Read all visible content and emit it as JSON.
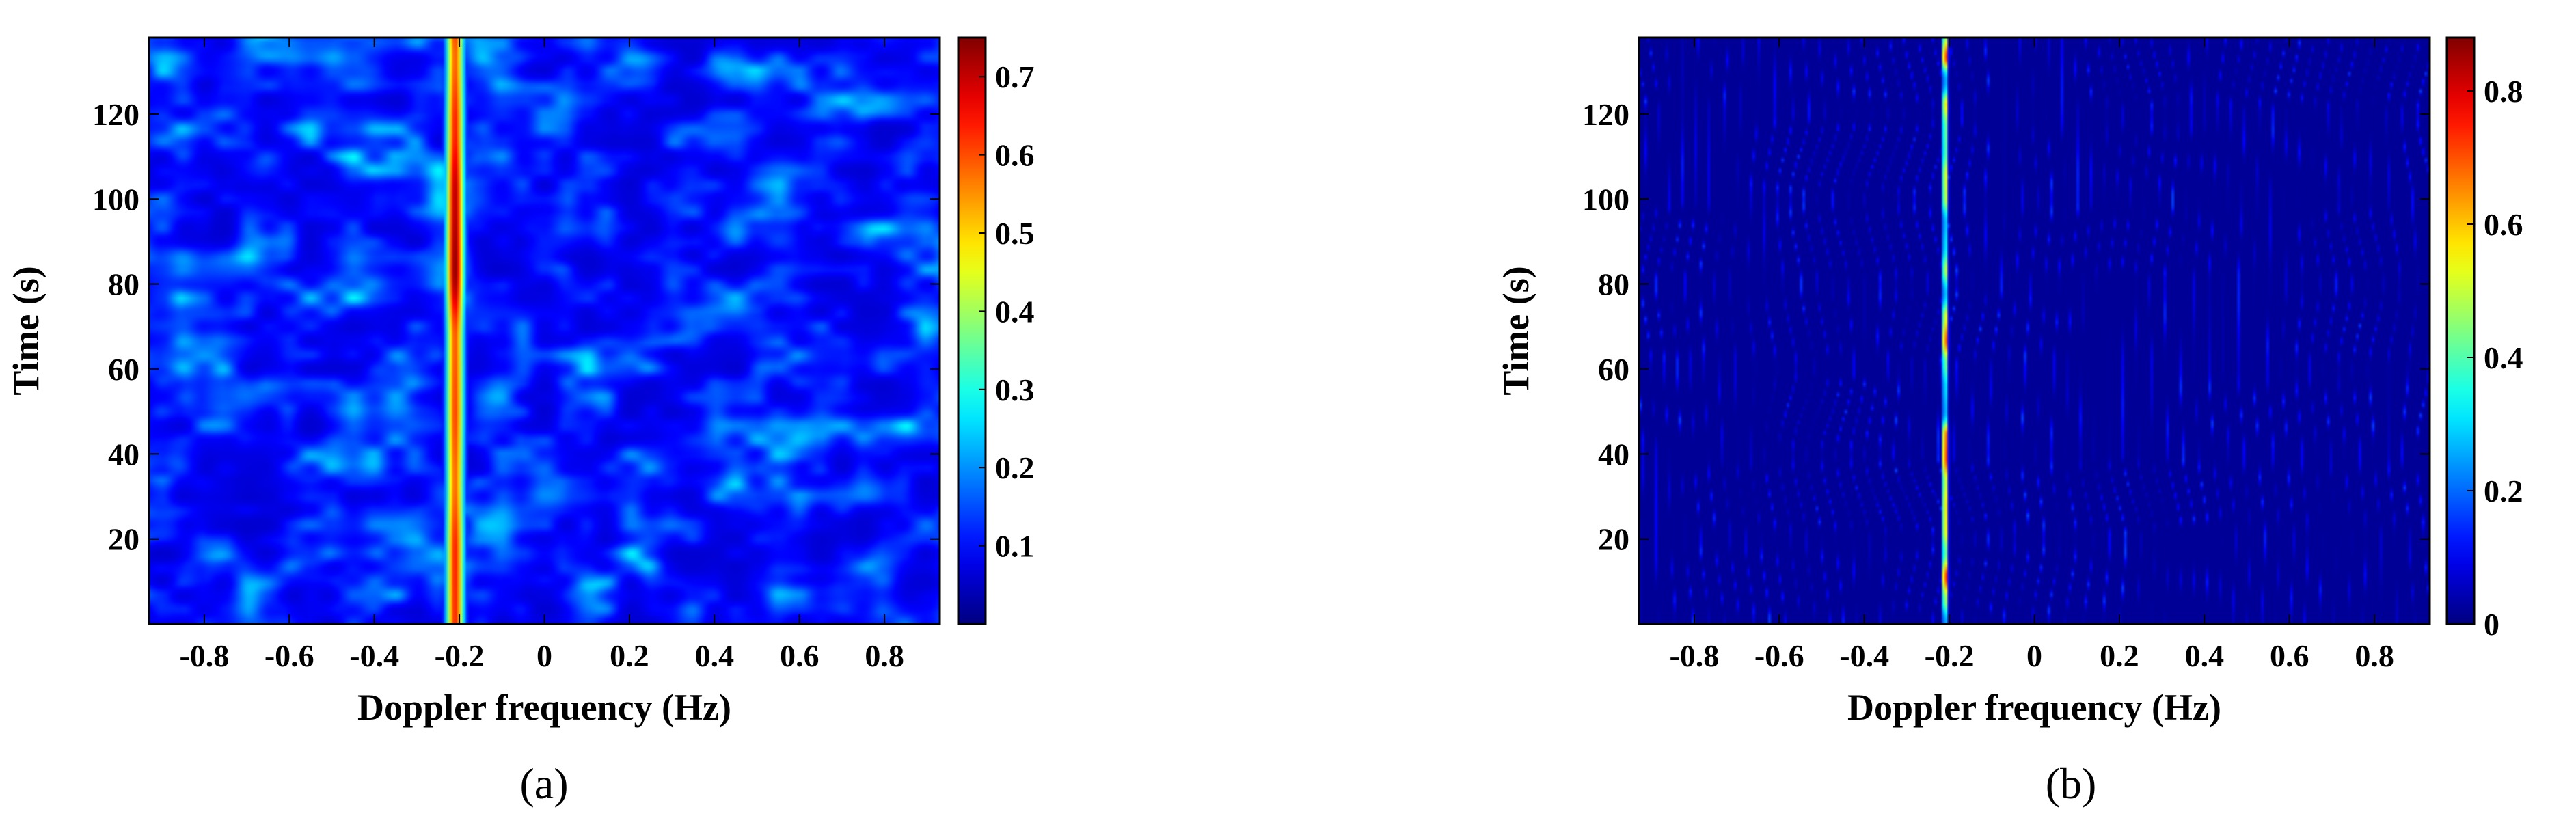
{
  "figure": {
    "panels": [
      {
        "id": "a",
        "caption": "(a)"
      },
      {
        "id": "b",
        "caption": "(b)"
      }
    ]
  },
  "chart_data": [
    {
      "type": "heatmap",
      "panel": "(a)",
      "xlabel": "Doppler frequency (Hz)",
      "ylabel": "Time (s)",
      "xlim": [
        -0.93,
        0.93
      ],
      "ylim": [
        0,
        138
      ],
      "xticks": [
        -0.8,
        -0.6,
        -0.4,
        -0.2,
        0,
        0.2,
        0.4,
        0.6,
        0.8
      ],
      "xtick_labels": [
        "-0.8",
        "-0.6",
        "-0.4",
        "-0.2",
        "0",
        "0.2",
        "0.4",
        "0.6",
        "0.8"
      ],
      "yticks": [
        20,
        40,
        60,
        80,
        100,
        120
      ],
      "ytick_labels": [
        "20",
        "40",
        "60",
        "80",
        "100",
        "120"
      ],
      "colormap": "jet",
      "colorbar": {
        "range": [
          0,
          0.75
        ],
        "ticks": [
          0.1,
          0.2,
          0.3,
          0.4,
          0.5,
          0.6,
          0.7
        ],
        "tick_labels": [
          "0.1",
          "0.2",
          "0.3",
          "0.4",
          "0.5",
          "0.6",
          "0.7"
        ]
      },
      "dominant_line": {
        "frequency_hz": -0.21,
        "peak_value": 0.74
      },
      "background_level": 0.1,
      "background_peak": 0.3
    },
    {
      "type": "heatmap",
      "panel": "(b)",
      "xlabel": "Doppler frequency (Hz)",
      "ylabel": "Time (s)",
      "xlim": [
        -0.93,
        0.93
      ],
      "ylim": [
        0,
        138
      ],
      "xticks": [
        -0.8,
        -0.6,
        -0.4,
        -0.2,
        0,
        0.2,
        0.4,
        0.6,
        0.8
      ],
      "xtick_labels": [
        "-0.8",
        "-0.6",
        "-0.4",
        "-0.2",
        "0",
        "0.2",
        "0.4",
        "0.6",
        "0.8"
      ],
      "yticks": [
        20,
        40,
        60,
        80,
        100,
        120
      ],
      "ytick_labels": [
        "20",
        "40",
        "60",
        "80",
        "100",
        "120"
      ],
      "colormap": "jet",
      "colorbar": {
        "range": [
          0,
          0.88
        ],
        "ticks": [
          0,
          0.2,
          0.4,
          0.6,
          0.8
        ],
        "tick_labels": [
          "0",
          "0.2",
          "0.4",
          "0.6",
          "0.8"
        ]
      },
      "dominant_line": {
        "frequency_hz": -0.21,
        "peak_value": 0.86
      },
      "background_level": 0.02,
      "background_peak": 0.15
    }
  ]
}
